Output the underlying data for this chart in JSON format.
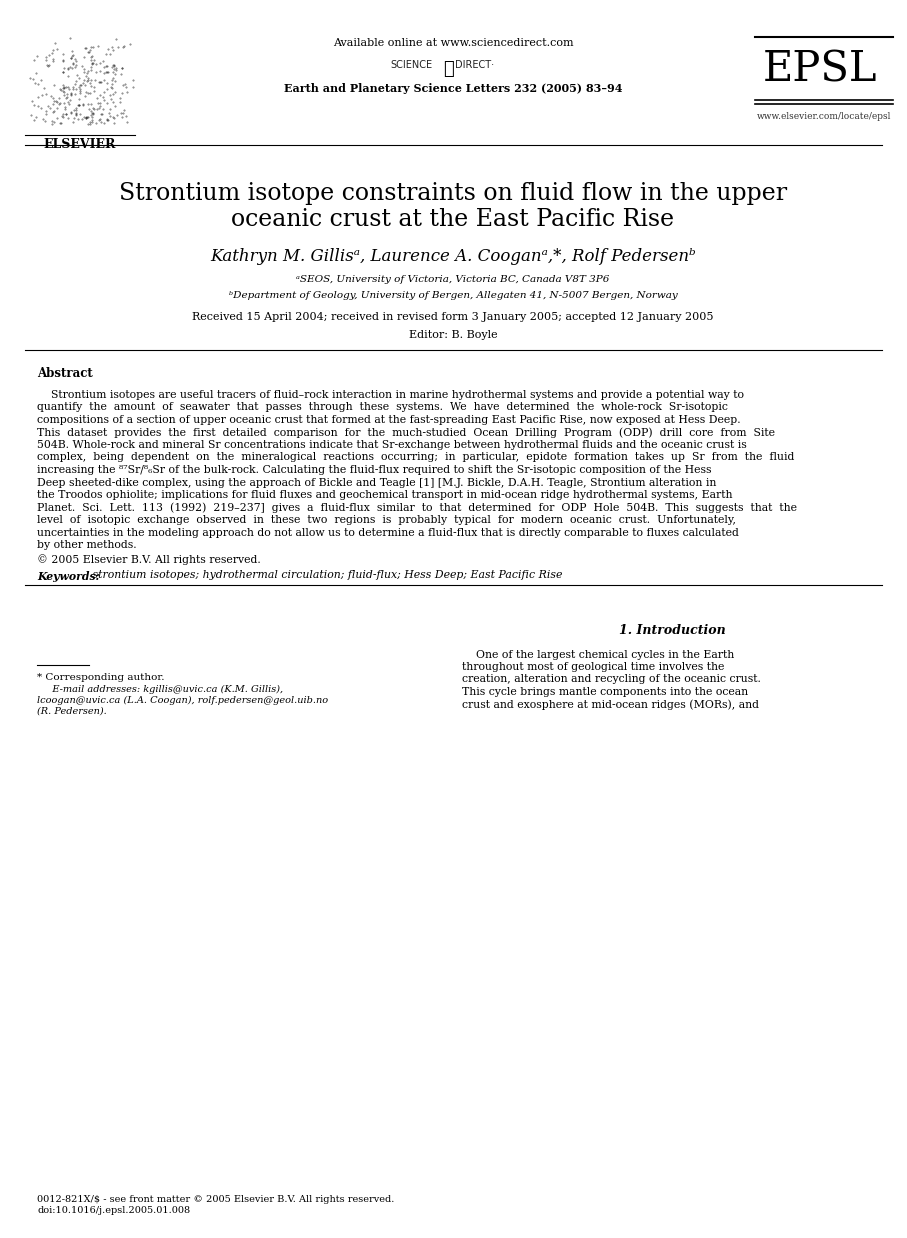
{
  "bg_color": "#ffffff",
  "available_online": "Available online at www.sciencedirect.com",
  "journal_info": "Earth and Planetary Science Letters 232 (2005) 83–94",
  "epsl_text": "EPSL",
  "website": "www.elsevier.com/locate/epsl",
  "science_direct": "SCIENCE   DIRECT·",
  "elsevier_label": "ELSEVIER",
  "title_line1": "Strontium isotope constraints on fluid flow in the upper",
  "title_line2": "oceanic crust at the East Pacific Rise",
  "authors": "Kathryn M. Gillisᵃ, Laurence A. Cooganᵃ,*, Rolf Pedersenᵇ",
  "affil_a": "ᵃSEOS, University of Victoria, Victoria BC, Canada V8T 3P6",
  "affil_b": "ᵇDepartment of Geology, University of Bergen, Allegaten 41, N-5007 Bergen, Norway",
  "received": "Received 15 April 2004; received in revised form 3 January 2005; accepted 12 January 2005",
  "editor": "Editor: B. Boyle",
  "abstract_label": "Abstract",
  "abstract_lines": [
    "    Strontium isotopes are useful tracers of fluid–rock interaction in marine hydrothermal systems and provide a potential way to",
    "quantify  the  amount  of  seawater  that  passes  through  these  systems.  We  have  determined  the  whole-rock  Sr-isotopic",
    "compositions of a section of upper oceanic crust that formed at the fast-spreading East Pacific Rise, now exposed at Hess Deep.",
    "This  dataset  provides  the  first  detailed  comparison  for  the  much-studied  Ocean  Drilling  Program  (ODP)  drill  core  from  Site",
    "504B. Whole-rock and mineral Sr concentrations indicate that Sr-exchange between hydrothermal fluids and the oceanic crust is",
    "complex,  being  dependent  on  the  mineralogical  reactions  occurring;  in  particular,  epidote  formation  takes  up  Sr  from  the  fluid",
    "increasing the ⁸⁷Sr/⁸₆Sr of the bulk-rock. Calculating the fluid-flux required to shift the Sr-isotopic composition of the Hess",
    "Deep sheeted-dike complex, using the approach of Bickle and Teagle [1] [M.J. Bickle, D.A.H. Teagle, Strontium alteration in",
    "the Troodos ophiolite; implications for fluid fluxes and geochemical transport in mid-ocean ridge hydrothermal systems, Earth",
    "Planet.  Sci.  Lett.  113  (1992)  219–237]  gives  a  fluid-flux  similar  to  that  determined  for  ODP  Hole  504B.  This  suggests  that  the",
    "level  of  isotopic  exchange  observed  in  these  two  regions  is  probably  typical  for  modern  oceanic  crust.  Unfortunately,",
    "uncertainties in the modeling approach do not allow us to determine a fluid-flux that is directly comparable to fluxes calculated",
    "by other methods."
  ],
  "copyright": "© 2005 Elsevier B.V. All rights reserved.",
  "keywords_label": "Keywords:",
  "keywords_text": " strontium isotopes; hydrothermal circulation; fluid-flux; Hess Deep; East Pacific Rise",
  "section1_title": "1. Introduction",
  "intro_lines": [
    "    One of the largest chemical cycles in the Earth",
    "throughout most of geological time involves the",
    "creation, alteration and recycling of the oceanic crust.",
    "This cycle brings mantle components into the ocean",
    "crust and exosphere at mid-ocean ridges (MORs), and"
  ],
  "footnote_line": "* Corresponding author.",
  "footnote_short_line": "________",
  "email_line1": "   E-mail addresses: kgillis@uvic.ca (K.M. Gillis),",
  "email_line2": "lcoogan@uvic.ca (L.A. Coogan), rolf.pedersen@geol.uib.no",
  "email_line3": "(R. Pedersen).",
  "doi_line1": "0012-821X/$ - see front matter © 2005 Elsevier B.V. All rights reserved.",
  "doi_line2": "doi:10.1016/j.epsl.2005.01.008"
}
